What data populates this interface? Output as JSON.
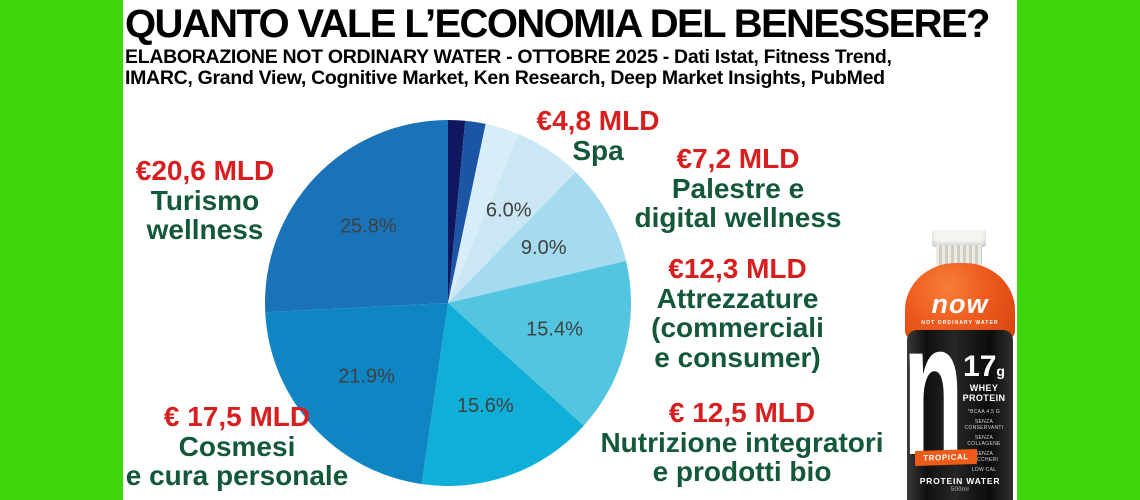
{
  "header": {
    "title": "QUANTO VALE L’ECONOMIA DEL BENESSERE?",
    "subtitle_lines": [
      "ELABORAZIONE NOT ORDINARY WATER - OTTOBRE 2025 - Dati Istat, Fitness Trend,",
      "IMARC, Grand View, Cognitive Market, Ken Research, Deep Market Insights, PubMed"
    ]
  },
  "colors": {
    "background": "#ffffff",
    "border_green": "#40d60c",
    "amount_red": "#d81f1f",
    "category_green": "#14583a",
    "pct_label_gray": "#3f4040"
  },
  "chart_data": {
    "type": "pie",
    "title": "QUANTO VALE L’ECONOMIA DEL BENESSERE?",
    "units": "percent of total wellness economy",
    "start_angle_deg": 0,
    "direction": "clockwise",
    "slices": [
      {
        "label": "",
        "value_pct": 1.5,
        "value_eur_mld": "",
        "color": "#11175f",
        "pct_label": ""
      },
      {
        "label": "",
        "value_pct": 1.8,
        "value_eur_mld": "",
        "color": "#1c55a4",
        "pct_label": ""
      },
      {
        "label": "",
        "value_pct": 3.0,
        "value_eur_mld": "",
        "color": "#d7edf7",
        "pct_label": ""
      },
      {
        "label": "Spa",
        "value_pct": 6.0,
        "value_eur_mld": "4,8",
        "color": "#cbe7f4",
        "pct_label": "6.0%"
      },
      {
        "label": "Palestre e digital wellness",
        "value_pct": 9.0,
        "value_eur_mld": "7,2",
        "color": "#a5dbee",
        "pct_label": "9.0%"
      },
      {
        "label": "Attrezzature (commerciali e consumer)",
        "value_pct": 15.4,
        "value_eur_mld": "12,3",
        "color": "#53c5e1",
        "pct_label": "15.4%"
      },
      {
        "label": "Nutrizione integratori e prodotti bio",
        "value_pct": 15.6,
        "value_eur_mld": "12,5",
        "color": "#10afd8",
        "pct_label": "15.6%"
      },
      {
        "label": "Cosmesi e cura personale",
        "value_pct": 21.9,
        "value_eur_mld": "17,5",
        "color": "#0f86c4",
        "pct_label": "21.9%"
      },
      {
        "label": "Turismo wellness",
        "value_pct": 25.8,
        "value_eur_mld": "20,6",
        "color": "#1a73b8",
        "pct_label": "25.8%"
      }
    ]
  },
  "callouts": [
    {
      "amount": "€4,8 MLD",
      "lines": [
        "Spa"
      ]
    },
    {
      "amount": "€7,2 MLD",
      "lines": [
        "Palestre e",
        "digital wellness"
      ]
    },
    {
      "amount": "€12,3 MLD",
      "lines": [
        "Attrezzature",
        "(commerciali",
        "e consumer)"
      ]
    },
    {
      "amount": "€ 12,5 MLD",
      "lines": [
        "Nutrizione integratori",
        "e prodotti bio"
      ]
    },
    {
      "amount": "€ 17,5 MLD",
      "lines": [
        "Cosmesi",
        "e cura personale"
      ]
    },
    {
      "amount": "€20,6 MLD",
      "lines": [
        "Turismo",
        "wellness"
      ]
    }
  ],
  "bottle": {
    "brand": "now",
    "brand_sub": "NOT ORDINARY WATER",
    "protein_qty": "17",
    "protein_unit": "g",
    "protein_label": "WHEY PROTEIN",
    "claims": [
      "*BCAA 4,5 g",
      "SENZA CONSERVANTI",
      "SENZA COLLAGENE",
      "SENZA ZUCCHERI",
      "LOW CAL"
    ],
    "flavor": "TROPICAL",
    "product_name": "PROTEIN WATER",
    "volume": "500ml"
  }
}
